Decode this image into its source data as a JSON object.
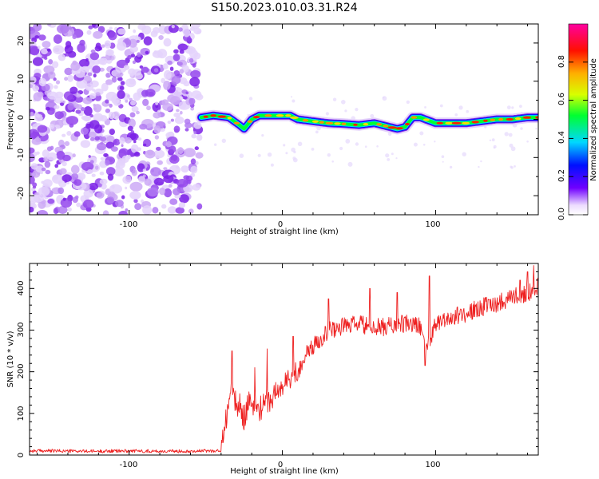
{
  "title": "S150.2023.010.03.31.R24",
  "colors": {
    "background": "#ffffff",
    "snr_line": "#ee2020",
    "noise_purple": "#7a1ee6",
    "axis": "#000000"
  },
  "chart_data": [
    {
      "type": "heatmap",
      "title": "S150.2023.010.03.31.R24",
      "xlabel": "Height of straight line (km)",
      "ylabel": "Frequency (Hz)",
      "xlim": [
        -165,
        167
      ],
      "ylim": [
        -25,
        25
      ],
      "x_ticks": [
        -100,
        0,
        100
      ],
      "y_ticks": [
        -20,
        -10,
        0,
        10,
        20
      ],
      "x_tick_labels": [
        "-100",
        "0",
        "100"
      ],
      "y_tick_labels": [
        "-20",
        "-10",
        "0",
        "10",
        "20"
      ],
      "noise_region_x": [
        -165,
        -53
      ],
      "signal_region_x": [
        -53,
        167
      ],
      "frequency_trace": {
        "x": [
          -53,
          -45,
          -35,
          -28,
          -25,
          -20,
          -15,
          -5,
          5,
          10,
          20,
          30,
          40,
          50,
          60,
          70,
          75,
          80,
          85,
          90,
          100,
          110,
          120,
          130,
          140,
          150,
          160,
          167
        ],
        "y": [
          0.5,
          1.0,
          0.5,
          -1.5,
          -2.5,
          0.0,
          1.0,
          1.0,
          1.0,
          0.0,
          -0.5,
          -1.0,
          -1.2,
          -1.5,
          -1.0,
          -2.0,
          -2.5,
          -2.0,
          0.5,
          0.5,
          -1.0,
          -1.0,
          -1.0,
          -0.5,
          0.0,
          0.0,
          0.5,
          0.5
        ]
      },
      "colorbar": {
        "label": "Normalized spectral amplitude",
        "range": [
          0,
          1
        ],
        "ticks": [
          0.0,
          0.2,
          0.4,
          0.6,
          0.8
        ],
        "tick_labels": [
          "0.0",
          "0.2",
          "0.4",
          "0.6",
          "0.8"
        ],
        "colormap": "rainbow-white"
      },
      "grid": false
    },
    {
      "type": "line",
      "xlabel": "Height of straight line (km)",
      "ylabel": "SNR (10 * v/v)",
      "xlim": [
        -165,
        167
      ],
      "ylim": [
        0,
        460
      ],
      "x_ticks": [
        -100,
        0,
        100
      ],
      "y_ticks": [
        0,
        100,
        200,
        300,
        400
      ],
      "x_tick_labels": [
        "-100",
        "0",
        "100"
      ],
      "y_tick_labels": [
        "0",
        "100",
        "200",
        "300",
        "400"
      ],
      "grid": false,
      "series": [
        {
          "x": [
            -165,
            -150,
            -125,
            -100,
            -75,
            -50,
            -40,
            -38,
            -35,
            -33,
            -30,
            -28,
            -25,
            -22,
            -20,
            -18,
            -15,
            -12,
            -10,
            -8,
            -5,
            -2,
            0,
            5,
            10,
            15,
            20,
            25,
            30,
            40,
            50,
            60,
            70,
            80,
            90,
            95,
            100,
            110,
            120,
            130,
            140,
            150,
            160,
            167
          ],
          "y": [
            10,
            10,
            9,
            10,
            9,
            10,
            10,
            60,
            130,
            160,
            115,
            120,
            90,
            130,
            105,
            125,
            110,
            120,
            135,
            125,
            150,
            155,
            165,
            185,
            200,
            240,
            260,
            280,
            300,
            310,
            315,
            305,
            310,
            315,
            310,
            260,
            320,
            330,
            340,
            355,
            365,
            380,
            390,
            405
          ],
          "spikes": {
            "x": [
              -33,
              -18,
              -10,
              7,
              30,
              57,
              75,
              93,
              96,
              155,
              160,
              164
            ],
            "y": [
              250,
              210,
              255,
              285,
              375,
              400,
              390,
              215,
              430,
              420,
              440,
              455
            ]
          }
        }
      ]
    }
  ]
}
